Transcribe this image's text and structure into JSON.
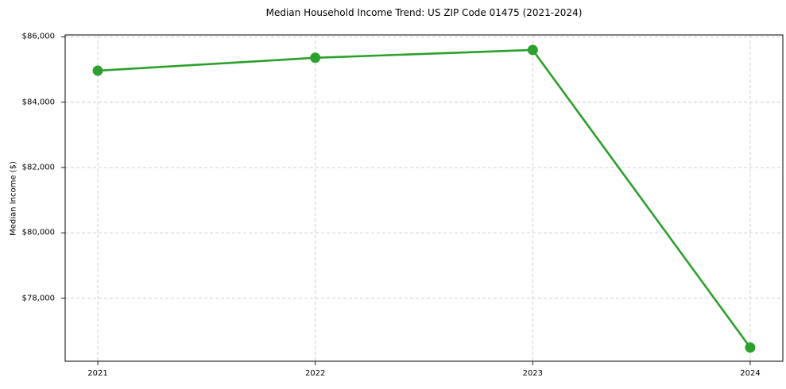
{
  "chart_data": {
    "type": "line",
    "title": "Median Household Income Trend: US ZIP Code 01475 (2021-2024)",
    "xlabel": "",
    "ylabel": "Median Income ($)",
    "x": [
      2021,
      2022,
      2023,
      2024
    ],
    "values": [
      84965,
      85360,
      85600,
      76490
    ],
    "x_tick_labels": [
      "2021",
      "2022",
      "2023",
      "2024"
    ],
    "y_ticks": [
      78000,
      80000,
      82000,
      84000,
      86000
    ],
    "y_tick_labels": [
      "$78,000",
      "$80,000",
      "$82,000",
      "$84,000",
      "$86,000"
    ],
    "xlim": [
      2020.85,
      2024.15
    ],
    "ylim": [
      76070,
      86060
    ],
    "grid": true,
    "grid_style": "dashed",
    "legend": "none",
    "colors": {
      "line": "#2ca02c",
      "marker": "#2ca02c",
      "grid": "#cccccc",
      "spine": "#000000",
      "text": "#000000",
      "background": "#ffffff"
    }
  }
}
